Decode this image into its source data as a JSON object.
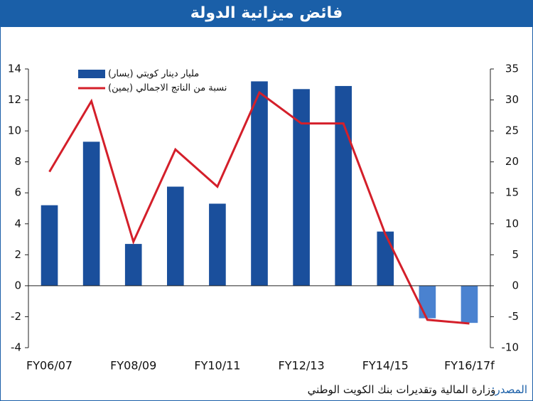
{
  "chart_data": {
    "type": "bar-line",
    "title": "فائض ميزانية الدولة",
    "categories": [
      "FY06/07",
      null,
      "FY08/09",
      null,
      "FY10/11",
      null,
      "FY12/13",
      null,
      "FY14/15",
      null,
      "FY16/17f"
    ],
    "series": [
      {
        "name": "مليار دينار كويتي (يسار)",
        "type": "bar",
        "color": "#1a4f9c",
        "colors": [
          "#1a4f9c",
          "#1a4f9c",
          "#1a4f9c",
          "#1a4f9c",
          "#1a4f9c",
          "#1a4f9c",
          "#1a4f9c",
          "#1a4f9c",
          "#1a4f9c",
          "#4a82d0",
          "#4a82d0"
        ],
        "values": [
          5.2,
          9.3,
          2.7,
          6.4,
          5.3,
          13.2,
          12.7,
          12.9,
          3.5,
          -2.1,
          -2.4
        ]
      },
      {
        "name": "نسبة من الناتج الاجمالي (يمين)",
        "type": "line",
        "axis": "y2",
        "color": "#d41f2a",
        "values": [
          18.4,
          29.8,
          7.1,
          22.0,
          16.0,
          31.2,
          26.2,
          26.2,
          8.3,
          -5.5,
          -6.1
        ]
      }
    ],
    "ylim": [
      -4,
      14
    ],
    "yticks": [
      -4,
      -2,
      0,
      2,
      4,
      6,
      8,
      10,
      12,
      14
    ],
    "y2lim": [
      -10,
      35
    ],
    "y2ticks": [
      -10,
      -5,
      0,
      5,
      10,
      15,
      20,
      25,
      30,
      35
    ],
    "source_label": "المصدر:",
    "source_text": "وزارة المالية وتقديرات بنك الكويت الوطني"
  }
}
